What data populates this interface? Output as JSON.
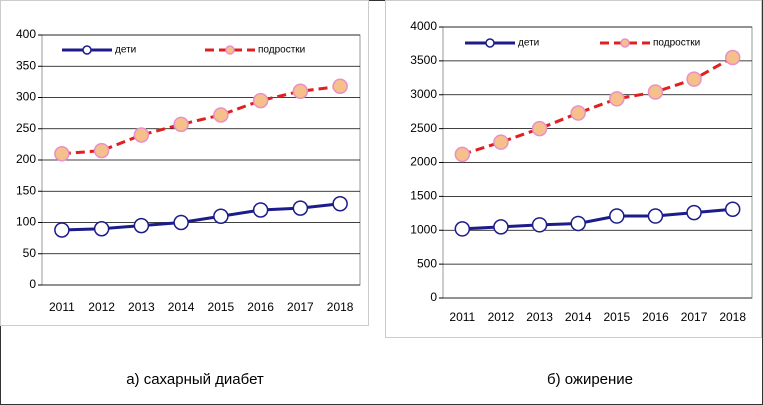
{
  "chart_data": [
    {
      "type": "line",
      "caption": "а) сахарный диабет",
      "categories": [
        "2011",
        "2012",
        "2013",
        "2014",
        "2015",
        "2016",
        "2017",
        "2018"
      ],
      "series": [
        {
          "name": "дети",
          "color": "#1c1c8a",
          "values": [
            88,
            90,
            95,
            100,
            110,
            120,
            123,
            130
          ]
        },
        {
          "name": "подростки",
          "color": "#e02020",
          "values": [
            210,
            215,
            240,
            257,
            272,
            295,
            310,
            318
          ]
        }
      ],
      "ylim": [
        0,
        400
      ],
      "yticks": [
        0,
        50,
        100,
        150,
        200,
        250,
        300,
        350,
        400
      ],
      "grid": true,
      "legend": "top"
    },
    {
      "type": "line",
      "caption": "б) ожирение",
      "categories": [
        "2011",
        "2012",
        "2013",
        "2014",
        "2015",
        "2016",
        "2017",
        "2018"
      ],
      "series": [
        {
          "name": "дети",
          "color": "#1c1c8a",
          "values": [
            1020,
            1050,
            1080,
            1100,
            1210,
            1210,
            1260,
            1310
          ]
        },
        {
          "name": "подростки",
          "color": "#e02020",
          "values": [
            2120,
            2300,
            2500,
            2730,
            2940,
            3040,
            3230,
            3550
          ]
        }
      ],
      "ylim": [
        0,
        4000
      ],
      "yticks": [
        0,
        500,
        1000,
        1500,
        2000,
        2500,
        3000,
        3500,
        4000
      ],
      "grid": true,
      "legend": "top"
    }
  ]
}
